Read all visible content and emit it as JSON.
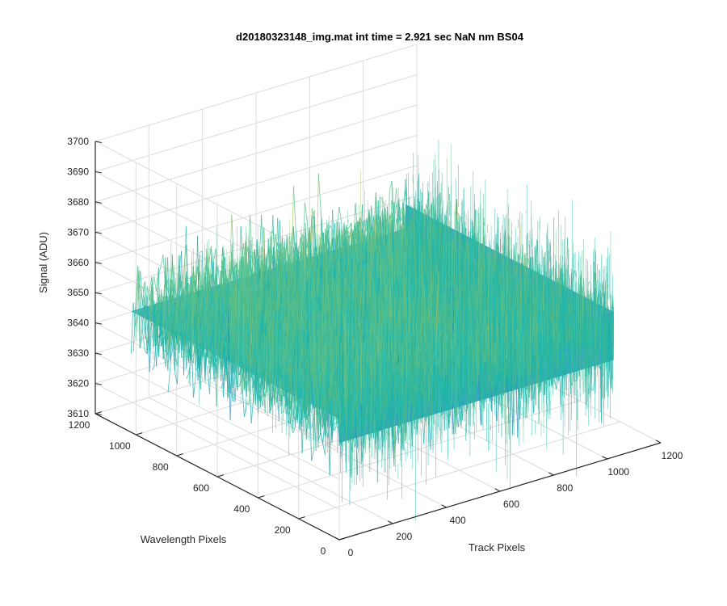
{
  "chart_data": {
    "type": "surface",
    "title": "d20180323148_img.mat int time = 2.921 sec  NaN nm BS04",
    "xlabel": "Track Pixels",
    "ylabel": "Wavelength Pixels",
    "zlabel": "Signal (ADU)",
    "xlim": [
      0,
      1200
    ],
    "ylim": [
      0,
      1200
    ],
    "zlim": [
      3610,
      3700
    ],
    "x_ticks": [
      "0",
      "200",
      "400",
      "600",
      "800",
      "1000",
      "1200"
    ],
    "y_ticks": [
      "0",
      "200",
      "400",
      "600",
      "800",
      "1000",
      "1200"
    ],
    "z_ticks": [
      "3610",
      "3620",
      "3630",
      "3640",
      "3650",
      "3660",
      "3670",
      "3680",
      "3690",
      "3700"
    ],
    "surface": {
      "x_range": [
        0,
        1024
      ],
      "y_range": [
        0,
        1024
      ],
      "mean": 3650,
      "min": 3610,
      "max": 3695,
      "pattern": "random noise"
    },
    "colormap": [
      "#1f77b4",
      "#1fa0c0",
      "#21b5a8",
      "#5cc08a",
      "#a8c86a",
      "#e6c34a"
    ],
    "grid": true
  }
}
